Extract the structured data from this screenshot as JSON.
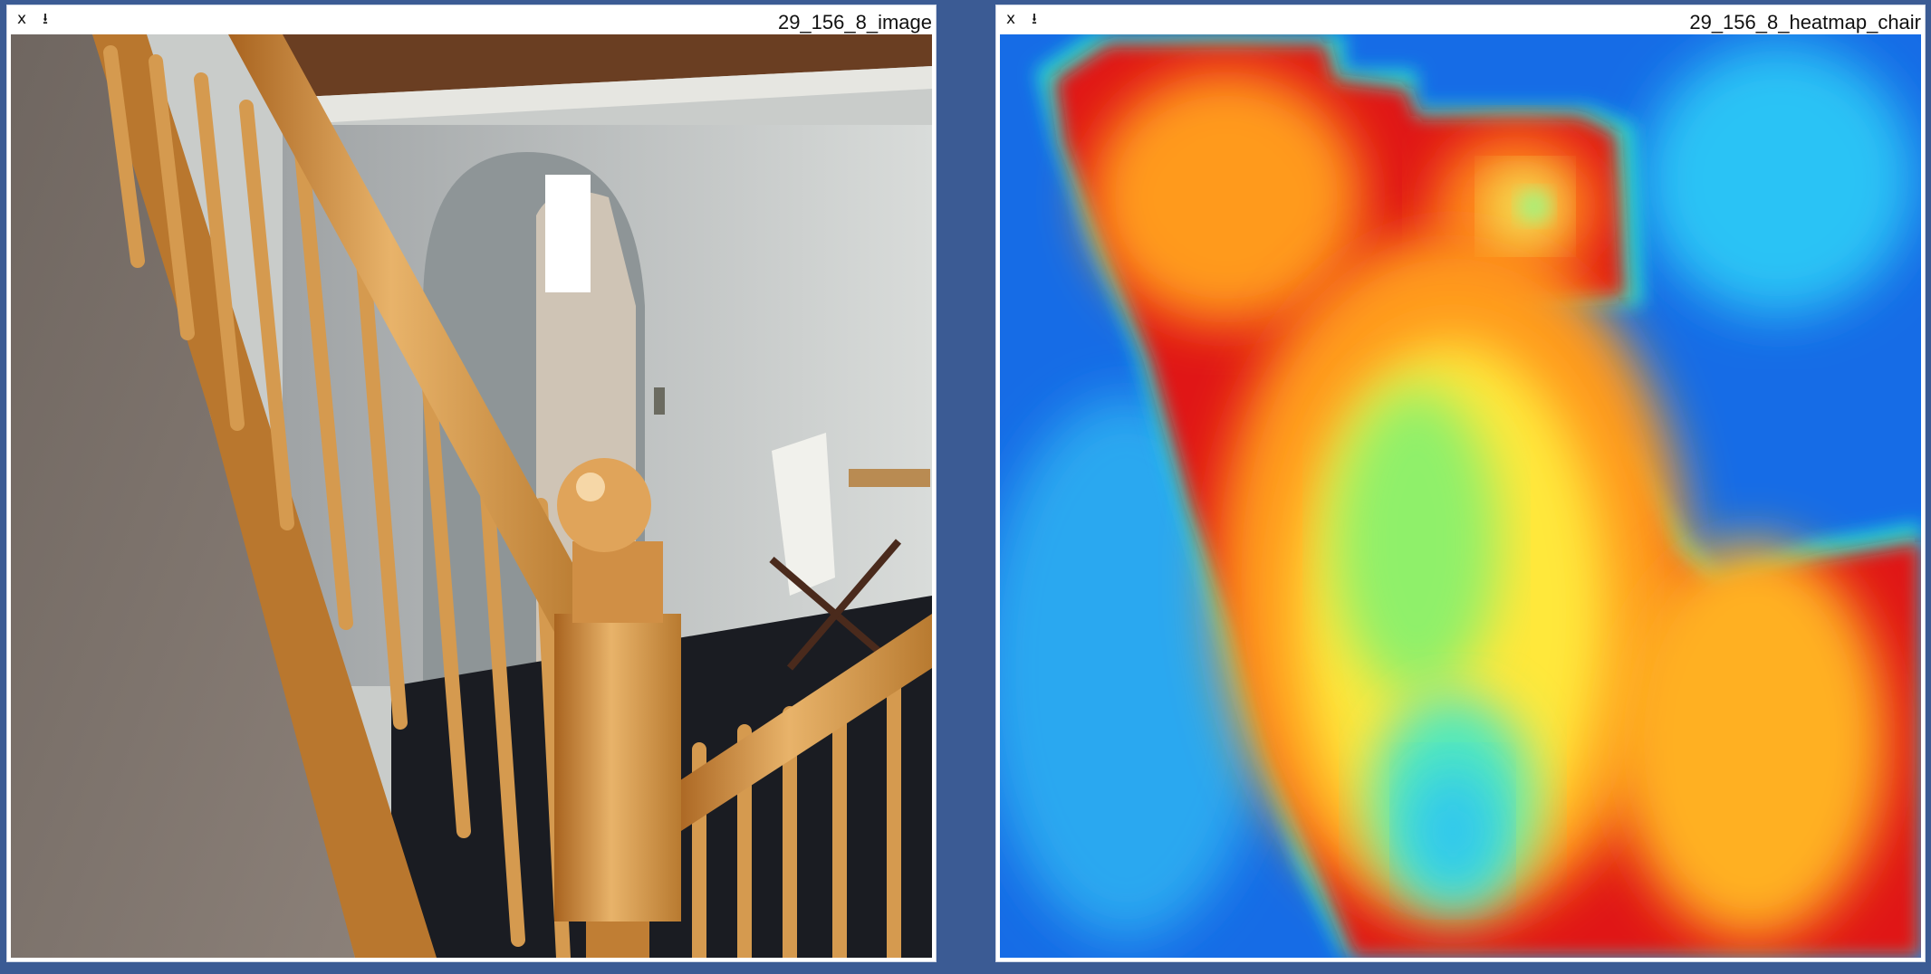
{
  "panels": [
    {
      "title": "29_156_8_image",
      "close_label": "x",
      "download_label": "⭳",
      "close_icon": "close-icon",
      "download_icon": "download-icon"
    },
    {
      "title": "29_156_8_heatmap_chair",
      "close_label": "x",
      "download_label": "⭳",
      "close_icon": "close-icon",
      "download_icon": "download-icon"
    }
  ],
  "colors": {
    "background": "#3b5b94",
    "panel": "#ffffff"
  }
}
